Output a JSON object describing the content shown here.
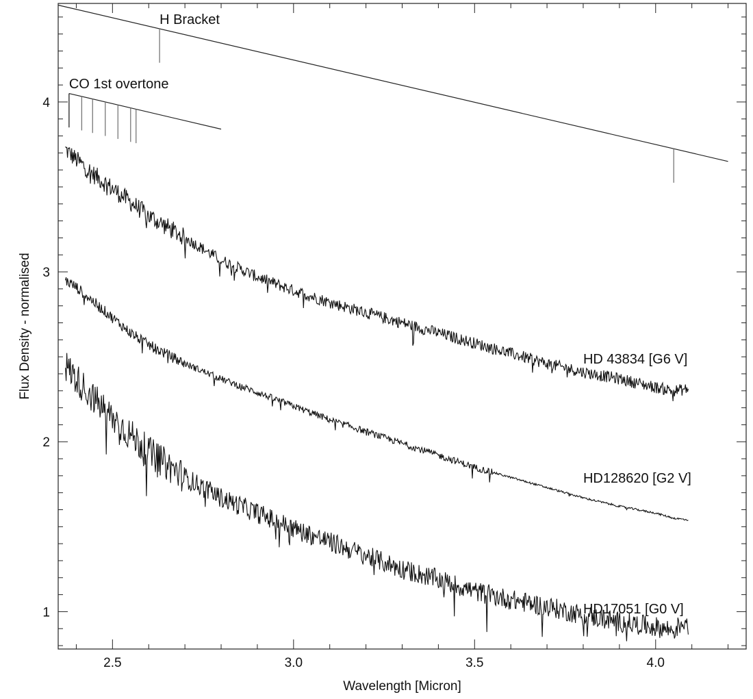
{
  "chart_data": {
    "type": "line",
    "title": "",
    "xlabel": "Wavelength [Micron]",
    "ylabel": "Flux Density - normalised",
    "xlim": [
      2.35,
      4.25
    ],
    "ylim": [
      0.78,
      4.58
    ],
    "xticks": [
      2.5,
      3.0,
      3.5,
      4.0
    ],
    "xtick_labels": [
      "2.5",
      "3.0",
      "3.5",
      "4.0"
    ],
    "yticks": [
      1,
      2,
      3,
      4
    ],
    "ytick_labels": [
      "1",
      "2",
      "3",
      "4"
    ],
    "grid": false,
    "legend": "none",
    "series": [
      {
        "name": "HD 43834 [G6 V]",
        "label_at": [
          3.8,
          2.46
        ],
        "x": [
          2.37,
          2.4,
          2.45,
          2.5,
          2.55,
          2.6,
          2.7,
          2.8,
          2.9,
          3.0,
          3.1,
          3.2,
          3.3,
          3.4,
          3.5,
          3.6,
          3.7,
          3.8,
          3.9,
          4.0,
          4.05,
          4.09
        ],
        "y": [
          3.72,
          3.66,
          3.57,
          3.49,
          3.41,
          3.33,
          3.2,
          3.07,
          2.97,
          2.89,
          2.82,
          2.76,
          2.7,
          2.64,
          2.58,
          2.52,
          2.46,
          2.41,
          2.37,
          2.32,
          2.3,
          2.31
        ]
      },
      {
        "name": "HD128620 [G2 V]",
        "label_at": [
          3.8,
          1.76
        ],
        "x": [
          2.37,
          2.4,
          2.45,
          2.5,
          2.55,
          2.6,
          2.7,
          2.8,
          2.9,
          3.0,
          3.1,
          3.2,
          3.3,
          3.4,
          3.5,
          3.6,
          3.7,
          3.8,
          3.9,
          4.0,
          4.05,
          4.09
        ],
        "y": [
          2.95,
          2.91,
          2.82,
          2.73,
          2.64,
          2.57,
          2.46,
          2.37,
          2.29,
          2.21,
          2.13,
          2.06,
          1.99,
          1.92,
          1.85,
          1.79,
          1.73,
          1.67,
          1.62,
          1.58,
          1.55,
          1.54
        ]
      },
      {
        "name": "HD17051 [G0 V]",
        "label_at": [
          3.8,
          0.99
        ],
        "x": [
          2.37,
          2.4,
          2.45,
          2.5,
          2.55,
          2.6,
          2.7,
          2.8,
          2.9,
          3.0,
          3.1,
          3.2,
          3.3,
          3.4,
          3.5,
          3.6,
          3.7,
          3.8,
          3.9,
          4.0,
          4.05,
          4.09
        ],
        "y": [
          2.45,
          2.37,
          2.25,
          2.14,
          2.04,
          1.94,
          1.79,
          1.67,
          1.58,
          1.49,
          1.41,
          1.33,
          1.25,
          1.19,
          1.12,
          1.07,
          1.03,
          0.98,
          0.94,
          0.91,
          0.89,
          0.96
        ]
      }
    ],
    "annotations": [
      {
        "label": "H Bracket",
        "label_at": [
          2.63,
          4.46
        ],
        "line": [
          [
            2.35,
            4.57
          ],
          [
            4.2,
            3.65
          ]
        ],
        "markers": [
          2.63,
          4.05
        ],
        "marker_length": 0.2
      },
      {
        "label": "CO 1st overtone",
        "label_at": [
          2.38,
          4.08
        ],
        "line": [
          [
            2.38,
            4.05
          ],
          [
            2.8,
            3.84
          ]
        ],
        "markers": [
          2.38,
          2.415,
          2.445,
          2.48,
          2.515,
          2.55,
          2.565
        ],
        "marker_length": 0.2
      }
    ]
  }
}
